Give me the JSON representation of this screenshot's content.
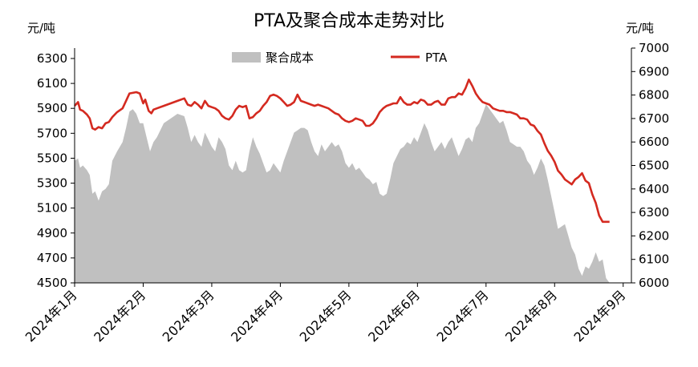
{
  "chart_data": {
    "type": "area",
    "title": "PTA及聚合成本走势对比",
    "left_axis": {
      "unit_label": "元/吨",
      "ylim": [
        4500,
        6300
      ],
      "ticks": [
        "4500",
        "4700",
        "4900",
        "5100",
        "5300",
        "5500",
        "5700",
        "5900",
        "6100",
        "6300"
      ]
    },
    "right_axis": {
      "unit_label": "元/吨",
      "ylim": [
        6000,
        7000
      ],
      "ticks": [
        "6000",
        "6100",
        "6200",
        "6300",
        "6400",
        "6500",
        "6600",
        "6700",
        "6800",
        "6900",
        "7000"
      ]
    },
    "x_axis": {
      "ticks": [
        "2024年1月",
        "2024年2月",
        "2024年3月",
        "2024年4月",
        "2024年5月",
        "2024年6月",
        "2024年7月",
        "2024年8月",
        "2024年9月"
      ],
      "xlim": [
        0,
        8.12
      ]
    },
    "legend": {
      "placement": "top-center"
    },
    "grid": false,
    "series": [
      {
        "name": "聚合成本",
        "axis": "right",
        "kind": "area",
        "color": "#c0c0c0",
        "points": [
          [
            0.0,
            6520
          ],
          [
            0.05,
            6530
          ],
          [
            0.08,
            6490
          ],
          [
            0.12,
            6500
          ],
          [
            0.18,
            6480
          ],
          [
            0.22,
            6460
          ],
          [
            0.26,
            6380
          ],
          [
            0.3,
            6390
          ],
          [
            0.35,
            6350
          ],
          [
            0.4,
            6390
          ],
          [
            0.45,
            6400
          ],
          [
            0.5,
            6420
          ],
          [
            0.55,
            6520
          ],
          [
            0.62,
            6560
          ],
          [
            0.7,
            6600
          ],
          [
            0.75,
            6660
          ],
          [
            0.8,
            6730
          ],
          [
            0.85,
            6740
          ],
          [
            0.9,
            6720
          ],
          [
            0.95,
            6680
          ],
          [
            1.0,
            6680
          ],
          [
            1.05,
            6620
          ],
          [
            1.1,
            6560
          ],
          [
            1.15,
            6600
          ],
          [
            1.2,
            6620
          ],
          [
            1.25,
            6650
          ],
          [
            1.3,
            6680
          ],
          [
            1.4,
            6700
          ],
          [
            1.5,
            6720
          ],
          [
            1.6,
            6710
          ],
          [
            1.65,
            6660
          ],
          [
            1.7,
            6600
          ],
          [
            1.75,
            6630
          ],
          [
            1.8,
            6600
          ],
          [
            1.85,
            6580
          ],
          [
            1.9,
            6640
          ],
          [
            1.95,
            6610
          ],
          [
            2.0,
            6580
          ],
          [
            2.05,
            6560
          ],
          [
            2.1,
            6620
          ],
          [
            2.15,
            6600
          ],
          [
            2.2,
            6570
          ],
          [
            2.25,
            6500
          ],
          [
            2.3,
            6480
          ],
          [
            2.35,
            6520
          ],
          [
            2.4,
            6480
          ],
          [
            2.45,
            6470
          ],
          [
            2.5,
            6480
          ],
          [
            2.55,
            6560
          ],
          [
            2.6,
            6620
          ],
          [
            2.65,
            6580
          ],
          [
            2.7,
            6550
          ],
          [
            2.75,
            6510
          ],
          [
            2.8,
            6470
          ],
          [
            2.85,
            6480
          ],
          [
            2.9,
            6510
          ],
          [
            2.95,
            6490
          ],
          [
            3.0,
            6470
          ],
          [
            3.05,
            6520
          ],
          [
            3.1,
            6560
          ],
          [
            3.15,
            6600
          ],
          [
            3.2,
            6640
          ],
          [
            3.25,
            6650
          ],
          [
            3.3,
            6660
          ],
          [
            3.35,
            6660
          ],
          [
            3.4,
            6650
          ],
          [
            3.45,
            6600
          ],
          [
            3.5,
            6560
          ],
          [
            3.55,
            6540
          ],
          [
            3.6,
            6590
          ],
          [
            3.65,
            6560
          ],
          [
            3.7,
            6580
          ],
          [
            3.75,
            6600
          ],
          [
            3.8,
            6580
          ],
          [
            3.85,
            6590
          ],
          [
            3.9,
            6560
          ],
          [
            3.95,
            6510
          ],
          [
            4.0,
            6490
          ],
          [
            4.05,
            6510
          ],
          [
            4.1,
            6480
          ],
          [
            4.15,
            6490
          ],
          [
            4.2,
            6470
          ],
          [
            4.25,
            6450
          ],
          [
            4.3,
            6440
          ],
          [
            4.35,
            6420
          ],
          [
            4.4,
            6430
          ],
          [
            4.45,
            6380
          ],
          [
            4.5,
            6370
          ],
          [
            4.55,
            6380
          ],
          [
            4.6,
            6440
          ],
          [
            4.65,
            6510
          ],
          [
            4.7,
            6540
          ],
          [
            4.75,
            6570
          ],
          [
            4.8,
            6580
          ],
          [
            4.85,
            6600
          ],
          [
            4.9,
            6590
          ],
          [
            4.95,
            6620
          ],
          [
            5.0,
            6600
          ],
          [
            5.05,
            6640
          ],
          [
            5.1,
            6680
          ],
          [
            5.15,
            6650
          ],
          [
            5.2,
            6600
          ],
          [
            5.25,
            6560
          ],
          [
            5.3,
            6580
          ],
          [
            5.35,
            6600
          ],
          [
            5.4,
            6570
          ],
          [
            5.45,
            6600
          ],
          [
            5.5,
            6620
          ],
          [
            5.55,
            6580
          ],
          [
            5.6,
            6540
          ],
          [
            5.65,
            6570
          ],
          [
            5.7,
            6610
          ],
          [
            5.75,
            6620
          ],
          [
            5.8,
            6600
          ],
          [
            5.85,
            6660
          ],
          [
            5.9,
            6680
          ],
          [
            5.95,
            6720
          ],
          [
            6.0,
            6760
          ],
          [
            6.05,
            6740
          ],
          [
            6.1,
            6720
          ],
          [
            6.15,
            6700
          ],
          [
            6.2,
            6680
          ],
          [
            6.25,
            6690
          ],
          [
            6.3,
            6650
          ],
          [
            6.35,
            6600
          ],
          [
            6.4,
            6590
          ],
          [
            6.45,
            6580
          ],
          [
            6.5,
            6580
          ],
          [
            6.55,
            6560
          ],
          [
            6.6,
            6520
          ],
          [
            6.65,
            6500
          ],
          [
            6.7,
            6460
          ],
          [
            6.75,
            6490
          ],
          [
            6.8,
            6530
          ],
          [
            6.85,
            6500
          ],
          [
            6.9,
            6440
          ],
          [
            6.95,
            6370
          ],
          [
            7.0,
            6300
          ],
          [
            7.05,
            6230
          ],
          [
            7.1,
            6240
          ],
          [
            7.15,
            6250
          ],
          [
            7.2,
            6200
          ],
          [
            7.25,
            6150
          ],
          [
            7.3,
            6120
          ],
          [
            7.35,
            6060
          ],
          [
            7.4,
            6030
          ],
          [
            7.45,
            6070
          ],
          [
            7.5,
            6060
          ],
          [
            7.55,
            6090
          ],
          [
            7.6,
            6130
          ],
          [
            7.65,
            6090
          ],
          [
            7.7,
            6100
          ],
          [
            7.75,
            6020
          ],
          [
            7.8,
            6000
          ]
        ]
      },
      {
        "name": "PTA",
        "axis": "left",
        "kind": "line",
        "color": "#d42a20",
        "points": [
          [
            0.0,
            5920
          ],
          [
            0.05,
            5950
          ],
          [
            0.08,
            5890
          ],
          [
            0.12,
            5880
          ],
          [
            0.18,
            5850
          ],
          [
            0.22,
            5820
          ],
          [
            0.26,
            5740
          ],
          [
            0.3,
            5730
          ],
          [
            0.35,
            5750
          ],
          [
            0.4,
            5740
          ],
          [
            0.45,
            5780
          ],
          [
            0.5,
            5790
          ],
          [
            0.55,
            5830
          ],
          [
            0.62,
            5870
          ],
          [
            0.7,
            5900
          ],
          [
            0.75,
            5960
          ],
          [
            0.8,
            6020
          ],
          [
            0.9,
            6030
          ],
          [
            0.95,
            6020
          ],
          [
            1.0,
            5940
          ],
          [
            1.03,
            5970
          ],
          [
            1.08,
            5880
          ],
          [
            1.12,
            5860
          ],
          [
            1.15,
            5890
          ],
          [
            1.2,
            5900
          ],
          [
            1.3,
            5920
          ],
          [
            1.4,
            5940
          ],
          [
            1.5,
            5960
          ],
          [
            1.6,
            5980
          ],
          [
            1.65,
            5930
          ],
          [
            1.7,
            5920
          ],
          [
            1.75,
            5950
          ],
          [
            1.8,
            5930
          ],
          [
            1.85,
            5900
          ],
          [
            1.9,
            5960
          ],
          [
            1.95,
            5920
          ],
          [
            2.0,
            5910
          ],
          [
            2.05,
            5900
          ],
          [
            2.1,
            5880
          ],
          [
            2.15,
            5840
          ],
          [
            2.2,
            5820
          ],
          [
            2.25,
            5810
          ],
          [
            2.3,
            5840
          ],
          [
            2.35,
            5890
          ],
          [
            2.4,
            5920
          ],
          [
            2.45,
            5910
          ],
          [
            2.5,
            5920
          ],
          [
            2.55,
            5820
          ],
          [
            2.6,
            5830
          ],
          [
            2.65,
            5860
          ],
          [
            2.7,
            5880
          ],
          [
            2.75,
            5920
          ],
          [
            2.8,
            5950
          ],
          [
            2.85,
            6000
          ],
          [
            2.9,
            6010
          ],
          [
            2.95,
            6000
          ],
          [
            3.0,
            5980
          ],
          [
            3.05,
            5950
          ],
          [
            3.1,
            5920
          ],
          [
            3.15,
            5930
          ],
          [
            3.2,
            5950
          ],
          [
            3.25,
            6010
          ],
          [
            3.3,
            5960
          ],
          [
            3.35,
            5950
          ],
          [
            3.4,
            5940
          ],
          [
            3.45,
            5930
          ],
          [
            3.5,
            5920
          ],
          [
            3.55,
            5930
          ],
          [
            3.6,
            5920
          ],
          [
            3.65,
            5910
          ],
          [
            3.7,
            5900
          ],
          [
            3.75,
            5880
          ],
          [
            3.8,
            5860
          ],
          [
            3.85,
            5850
          ],
          [
            3.9,
            5820
          ],
          [
            3.95,
            5800
          ],
          [
            4.0,
            5790
          ],
          [
            4.05,
            5800
          ],
          [
            4.1,
            5820
          ],
          [
            4.15,
            5810
          ],
          [
            4.2,
            5800
          ],
          [
            4.25,
            5760
          ],
          [
            4.3,
            5760
          ],
          [
            4.35,
            5780
          ],
          [
            4.4,
            5820
          ],
          [
            4.45,
            5870
          ],
          [
            4.5,
            5900
          ],
          [
            4.55,
            5920
          ],
          [
            4.6,
            5930
          ],
          [
            4.65,
            5940
          ],
          [
            4.7,
            5940
          ],
          [
            4.75,
            5990
          ],
          [
            4.8,
            5950
          ],
          [
            4.85,
            5930
          ],
          [
            4.9,
            5930
          ],
          [
            4.95,
            5950
          ],
          [
            5.0,
            5940
          ],
          [
            5.05,
            5970
          ],
          [
            5.1,
            5960
          ],
          [
            5.15,
            5930
          ],
          [
            5.2,
            5930
          ],
          [
            5.25,
            5950
          ],
          [
            5.3,
            5960
          ],
          [
            5.35,
            5930
          ],
          [
            5.4,
            5930
          ],
          [
            5.45,
            5980
          ],
          [
            5.5,
            5990
          ],
          [
            5.55,
            5990
          ],
          [
            5.6,
            6020
          ],
          [
            5.65,
            6010
          ],
          [
            5.7,
            6060
          ],
          [
            5.75,
            6130
          ],
          [
            5.8,
            6080
          ],
          [
            5.85,
            6020
          ],
          [
            5.9,
            5980
          ],
          [
            5.95,
            5950
          ],
          [
            6.0,
            5940
          ],
          [
            6.05,
            5930
          ],
          [
            6.1,
            5900
          ],
          [
            6.15,
            5890
          ],
          [
            6.2,
            5880
          ],
          [
            6.25,
            5880
          ],
          [
            6.3,
            5870
          ],
          [
            6.35,
            5870
          ],
          [
            6.4,
            5860
          ],
          [
            6.45,
            5850
          ],
          [
            6.5,
            5820
          ],
          [
            6.55,
            5820
          ],
          [
            6.6,
            5810
          ],
          [
            6.65,
            5770
          ],
          [
            6.7,
            5760
          ],
          [
            6.75,
            5720
          ],
          [
            6.8,
            5690
          ],
          [
            6.85,
            5620
          ],
          [
            6.9,
            5560
          ],
          [
            6.95,
            5520
          ],
          [
            7.0,
            5470
          ],
          [
            7.05,
            5400
          ],
          [
            7.1,
            5370
          ],
          [
            7.15,
            5330
          ],
          [
            7.2,
            5310
          ],
          [
            7.25,
            5290
          ],
          [
            7.3,
            5330
          ],
          [
            7.35,
            5350
          ],
          [
            7.4,
            5380
          ],
          [
            7.45,
            5320
          ],
          [
            7.5,
            5300
          ],
          [
            7.55,
            5210
          ],
          [
            7.6,
            5140
          ],
          [
            7.65,
            5040
          ],
          [
            7.7,
            4990
          ],
          [
            7.8,
            4990
          ]
        ]
      }
    ]
  }
}
